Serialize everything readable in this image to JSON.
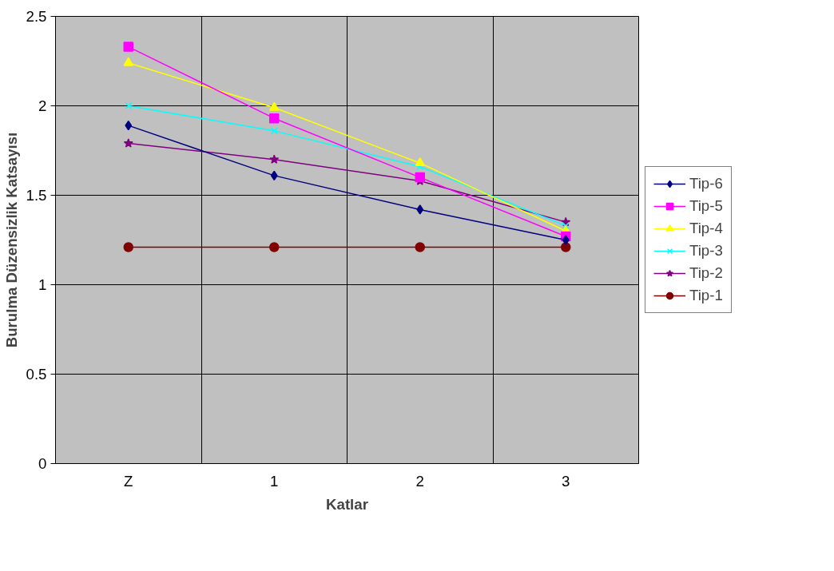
{
  "chart_data": {
    "type": "line",
    "xlabel": "Katlar",
    "ylabel": "Burulma Düzensizlik Katsayısı",
    "categories": [
      "Z",
      "1",
      "2",
      "3"
    ],
    "ylim": [
      0,
      2.5
    ],
    "yticks": [
      0,
      0.5,
      1,
      1.5,
      2,
      2.5
    ],
    "grid": true,
    "legend": "right",
    "line_style": "solid",
    "series": [
      {
        "name": "Tip-6",
        "color": "#000080",
        "marker": "diamond",
        "values": [
          1.89,
          1.61,
          1.42,
          1.25
        ]
      },
      {
        "name": "Tip-5",
        "color": "#ff00ff",
        "marker": "square",
        "values": [
          2.33,
          1.93,
          1.6,
          1.27
        ]
      },
      {
        "name": "Tip-4",
        "color": "#ffff00",
        "marker": "triangle",
        "values": [
          2.24,
          1.99,
          1.68,
          1.3
        ]
      },
      {
        "name": "Tip-3",
        "color": "#00ffff",
        "marker": "cross",
        "values": [
          2.0,
          1.86,
          1.66,
          1.33
        ]
      },
      {
        "name": "Tip-2",
        "color": "#800080",
        "marker": "star",
        "values": [
          1.79,
          1.7,
          1.58,
          1.35
        ]
      },
      {
        "name": "Tip-1",
        "color": "#800000",
        "marker": "circle",
        "values": [
          1.21,
          1.21,
          1.21,
          1.21
        ]
      }
    ]
  }
}
